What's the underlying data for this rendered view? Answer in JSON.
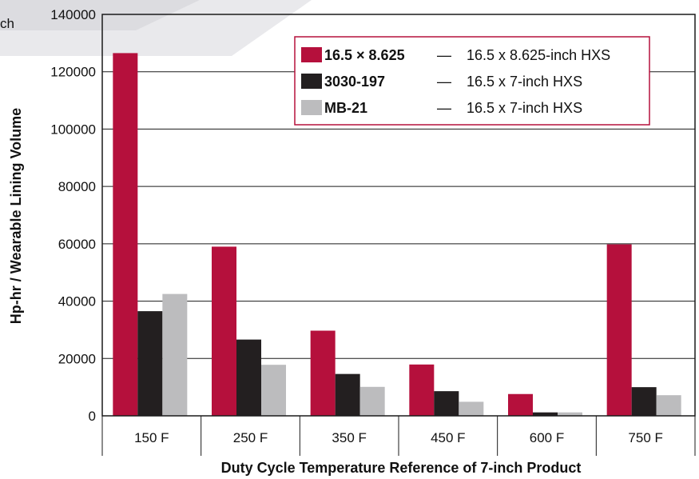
{
  "corner_fragment": "ch",
  "chart_data": {
    "type": "bar",
    "categories": [
      "150 F",
      "250 F",
      "350 F",
      "450 F",
      "600 F",
      "750 F"
    ],
    "series": [
      {
        "name": "16.5 × 8.625",
        "description": "16.5 x 8.625-inch HXS",
        "color": "#b5103c",
        "values": [
          126500,
          59000,
          29700,
          17900,
          7600,
          59800
        ]
      },
      {
        "name": "3030-197",
        "description": "16.5 x 7-inch HXS",
        "color": "#231f20",
        "values": [
          36500,
          26600,
          14600,
          8600,
          1200,
          10000
        ]
      },
      {
        "name": "MB-21",
        "description": "16.5 x 7-inch HXS",
        "color": "#bcbcbe",
        "values": [
          42500,
          17800,
          10100,
          4900,
          1200,
          7200
        ]
      }
    ],
    "legend_separator": "—",
    "xlabel": "Duty Cycle Temperature Reference of 7-inch Product",
    "ylabel": "Hp-hr / Wearable Lining Volume",
    "ylim": [
      0,
      140000
    ],
    "yticks": [
      0,
      20000,
      40000,
      60000,
      80000,
      100000,
      120000,
      140000
    ],
    "grid": true,
    "legend_position": "top-right"
  }
}
